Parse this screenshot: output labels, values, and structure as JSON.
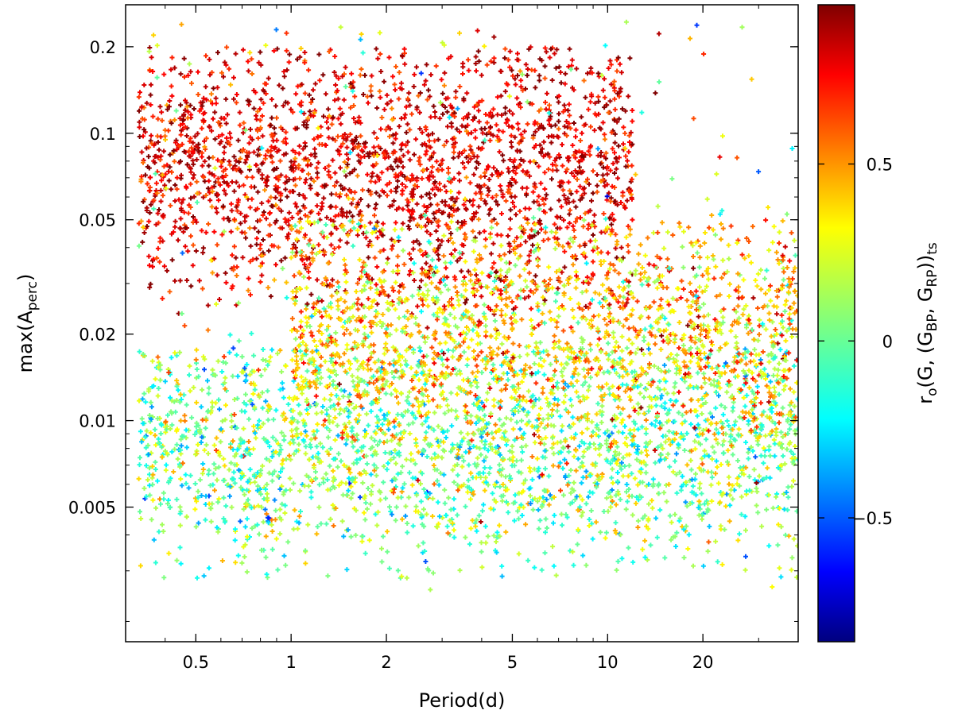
{
  "chart_data": {
    "type": "scatter",
    "title": "",
    "xlabel": "Period(d)",
    "ylabel_parts": {
      "pre": "max(A",
      "sub": "perc",
      "post": ")"
    },
    "colorbar_label_parts": {
      "r": "r",
      "r_sub": "o",
      "mid1": "(G, (G",
      "bp_sub": "BP",
      "mid2": ", G",
      "rp_sub": "RP",
      "mid3": "))",
      "ts_sub": "ts"
    },
    "xscale": "log",
    "yscale": "log",
    "xlim": [
      0.3,
      40
    ],
    "ylim": [
      0.0017,
      0.28
    ],
    "color_range": [
      -0.85,
      0.95
    ],
    "colormap": "jet",
    "x_ticks": [
      {
        "value": 0.5,
        "label": "0.5"
      },
      {
        "value": 1,
        "label": "1"
      },
      {
        "value": 2,
        "label": "2"
      },
      {
        "value": 5,
        "label": "5"
      },
      {
        "value": 10,
        "label": "10"
      },
      {
        "value": 20,
        "label": "20"
      }
    ],
    "y_ticks": [
      {
        "value": 0.005,
        "label": "0.005"
      },
      {
        "value": 0.01,
        "label": "0.01"
      },
      {
        "value": 0.02,
        "label": "0.02"
      },
      {
        "value": 0.05,
        "label": "0.05"
      },
      {
        "value": 0.1,
        "label": "0.1"
      },
      {
        "value": 0.2,
        "label": "0.2"
      }
    ],
    "colorbar_ticks": [
      {
        "value": -0.5,
        "label": "−0.5"
      },
      {
        "value": 0,
        "label": "0"
      },
      {
        "value": 0.5,
        "label": "0.5"
      }
    ],
    "marker": "plus",
    "clusters": [
      {
        "x_range": [
          0.33,
          12
        ],
        "y_range": [
          0.025,
          0.2
        ],
        "y_peak": 0.075,
        "color_mean": 0.78,
        "color_spread": 0.14,
        "count": 2200
      },
      {
        "x_range": [
          0.33,
          40
        ],
        "y_range": [
          0.0028,
          0.018
        ],
        "y_peak": 0.008,
        "color_mean": 0.05,
        "color_spread": 0.2,
        "count": 2400
      },
      {
        "x_range": [
          1,
          40
        ],
        "y_range": [
          0.008,
          0.05
        ],
        "y_peak": 0.02,
        "color_mean": 0.35,
        "color_spread": 0.22,
        "count": 1800
      },
      {
        "x_range": [
          0.33,
          40
        ],
        "y_range": [
          0.0025,
          0.25
        ],
        "y_peak": 0.03,
        "color_mean": 0.3,
        "color_spread": 0.35,
        "count": 350
      }
    ]
  }
}
